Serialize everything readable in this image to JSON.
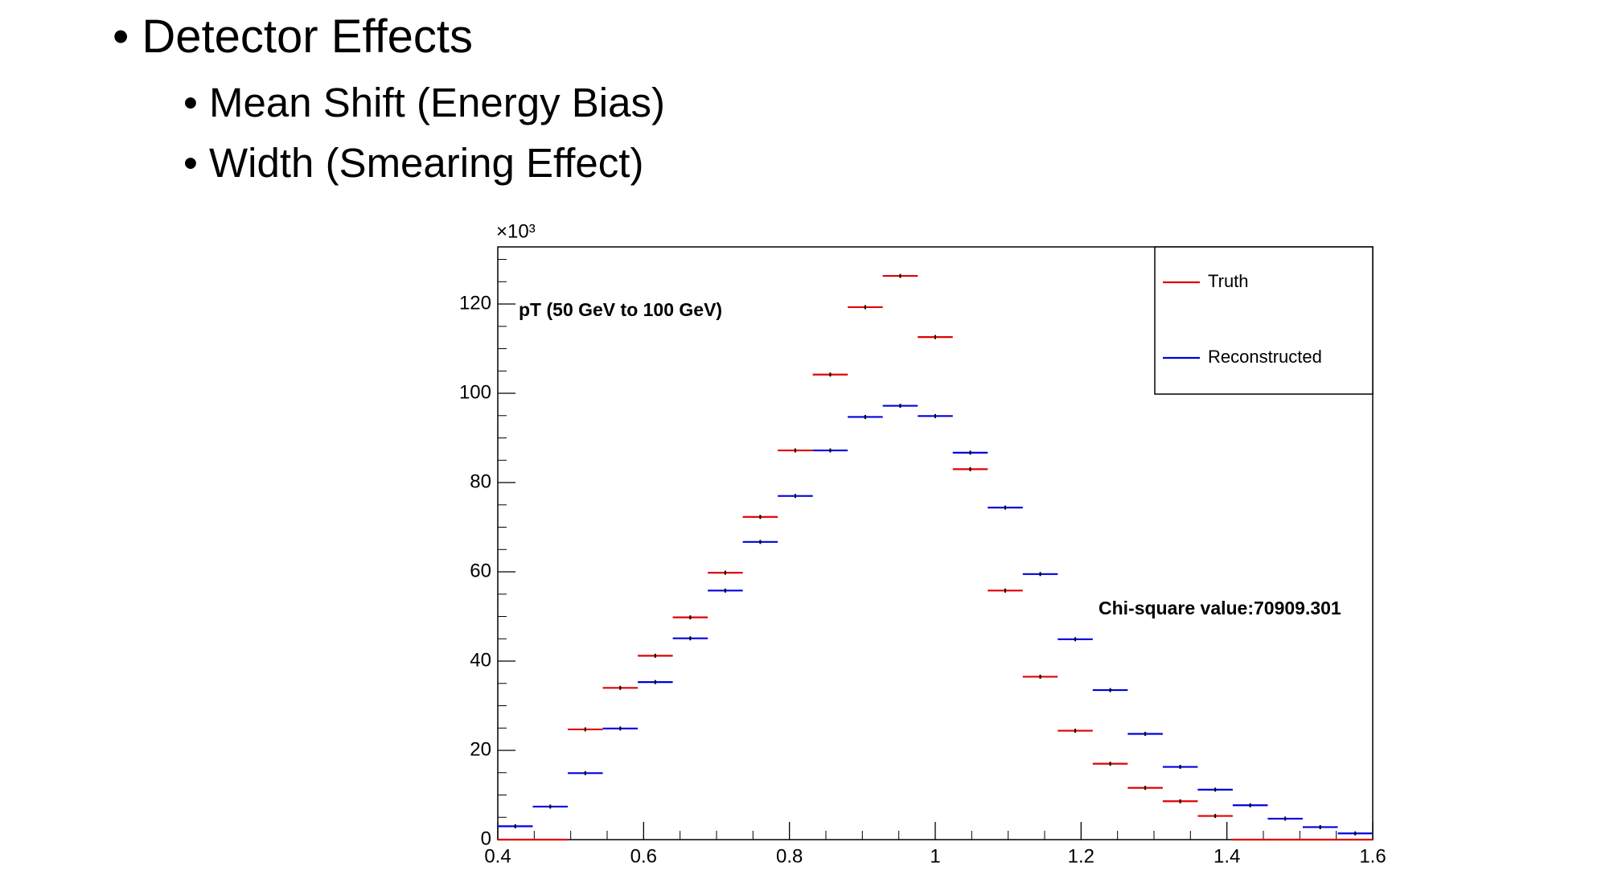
{
  "bullets": [
    "Detector Effects"
  ],
  "sub_bullets": [
    "Mean Shift (Energy Bias)",
    "Width (Smearing Effect)"
  ],
  "chart_data": {
    "type": "histogram",
    "title": "pT (50 GeV to 100 GeV)",
    "annotation": "Chi-square value:70909.301",
    "y_multiplier": "×10³",
    "bins": [
      0.4,
      0.448,
      0.496,
      0.544,
      0.592,
      0.64,
      0.688,
      0.736,
      0.784,
      0.832,
      0.88,
      0.928,
      0.976,
      1.024,
      1.072,
      1.12,
      1.168,
      1.216,
      1.264,
      1.312,
      1.36,
      1.408,
      1.456,
      1.504,
      1.552,
      1.6
    ],
    "series": [
      {
        "name": "Truth",
        "color": "#e00000",
        "values": [
          0,
          0,
          24.7,
          34.0,
          41.2,
          49.8,
          59.8,
          72.3,
          87.2,
          104.2,
          119.3,
          126.3,
          112.6,
          83.0,
          55.8,
          36.5,
          24.4,
          17.0,
          11.6,
          8.6,
          5.3,
          0,
          0,
          0,
          0
        ]
      },
      {
        "name": "Reconstructed",
        "color": "#0000e0",
        "values": [
          3.0,
          7.4,
          14.9,
          24.9,
          35.3,
          45.1,
          55.8,
          66.7,
          77.0,
          87.2,
          94.7,
          97.2,
          94.9,
          86.7,
          74.4,
          59.5,
          44.9,
          33.5,
          23.7,
          16.3,
          11.2,
          7.7,
          4.7,
          2.8,
          1.4
        ]
      }
    ],
    "xlim": [
      0.4,
      1.6
    ],
    "xticks": [
      0.4,
      0.6,
      0.8,
      1,
      1.2,
      1.4,
      1.6
    ],
    "ylim": [
      0,
      132.8
    ],
    "yticks": [
      0,
      20,
      40,
      60,
      80,
      100,
      120
    ],
    "legend": "top-right"
  }
}
